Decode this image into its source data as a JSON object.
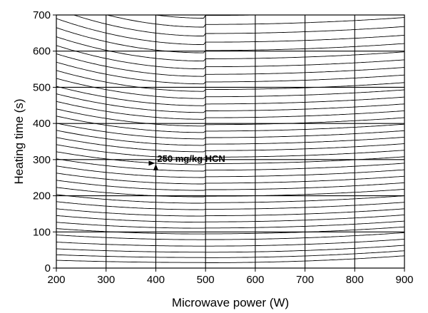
{
  "chart_data": {
    "type": "contour",
    "xlabel": "Microwave power (W)",
    "ylabel": "Heating time (s)",
    "xlim": [
      200,
      900
    ],
    "ylim": [
      0,
      700
    ],
    "x_ticks": [
      200,
      300,
      400,
      500,
      600,
      700,
      800,
      900
    ],
    "y_ticks": [
      0,
      100,
      200,
      300,
      400,
      500,
      600,
      700
    ],
    "grid": true,
    "annotation": {
      "text": "250 mg/kg HCN",
      "point": {
        "x": 400,
        "y": 290
      }
    },
    "contour_lines_at_x_400": [
      16,
      30,
      45,
      62,
      80,
      96,
      112,
      129,
      146,
      164,
      182,
      200,
      218,
      236,
      254,
      272,
      290,
      308,
      326,
      344,
      362,
      380,
      398,
      417,
      436,
      455,
      475,
      495,
      516,
      537,
      558,
      580,
      603,
      626,
      650,
      675,
      700
    ]
  }
}
